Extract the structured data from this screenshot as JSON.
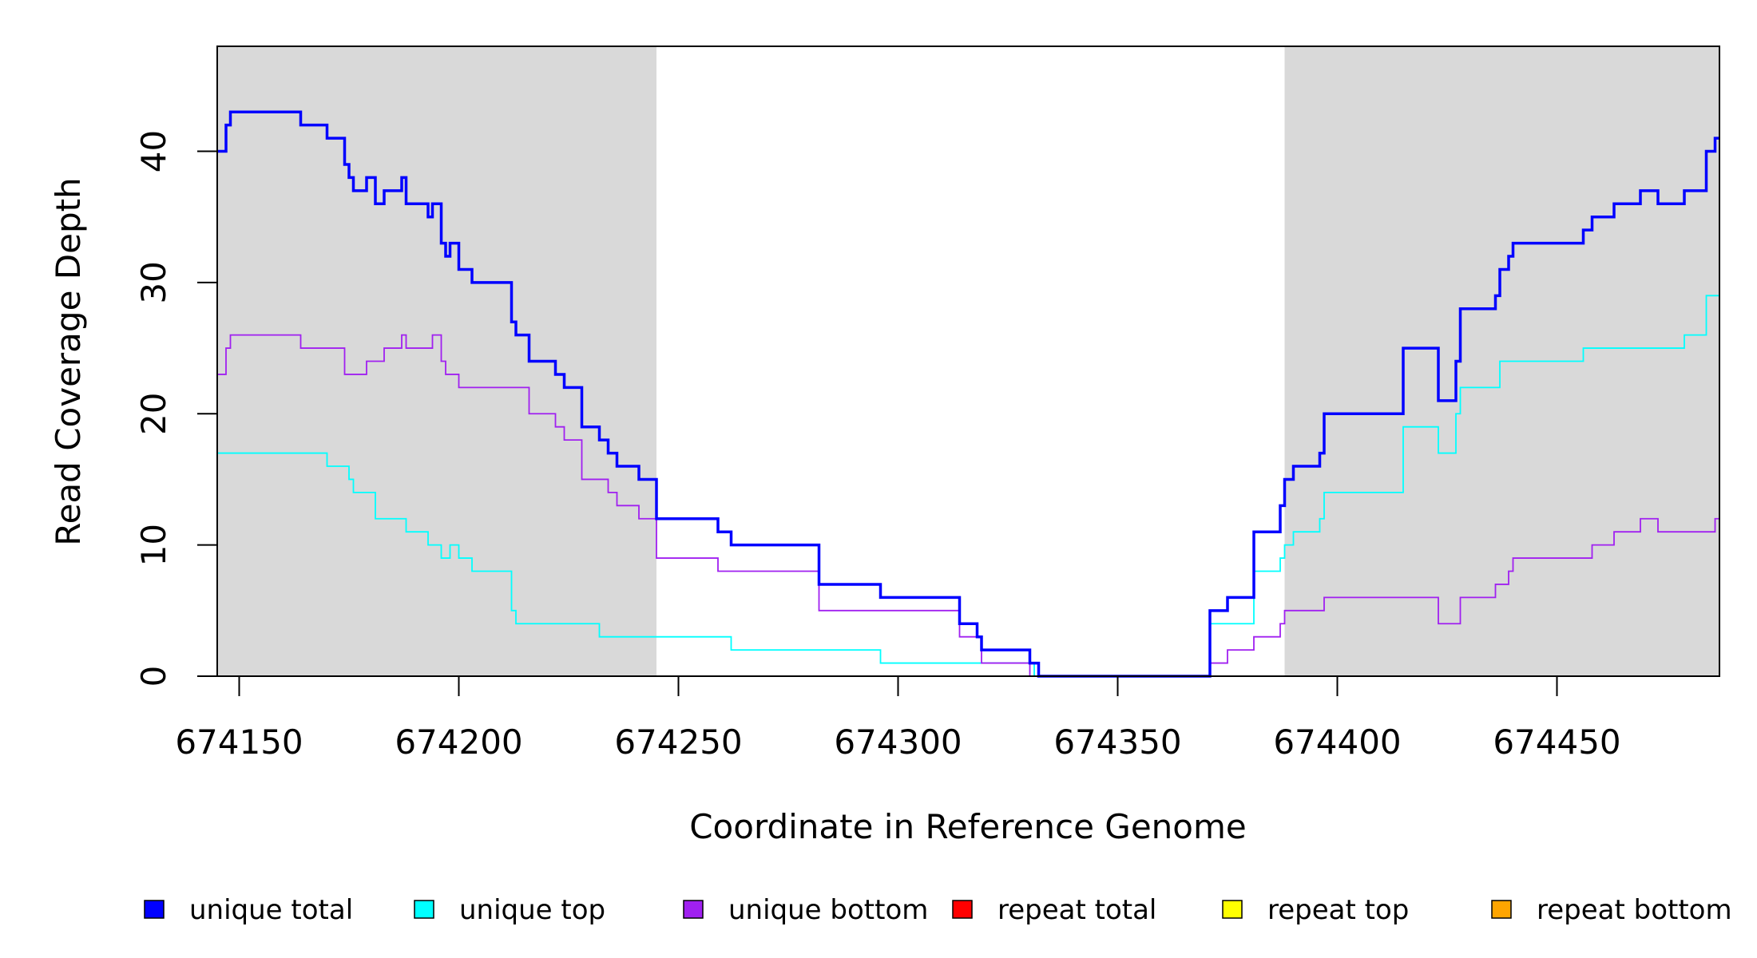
{
  "chart_data": {
    "type": "line",
    "title": "",
    "xlabel": "Coordinate in Reference Genome",
    "ylabel": "Read Coverage Depth",
    "xlim": [
      674145,
      674487
    ],
    "ylim": [
      0,
      48
    ],
    "xticks": [
      674150,
      674200,
      674250,
      674300,
      674350,
      674400,
      674450
    ],
    "xtick_labels": [
      "674150",
      "674200",
      "674250",
      "674300",
      "674350",
      "674400",
      "674450"
    ],
    "yticks": [
      0,
      10,
      20,
      30,
      40
    ],
    "ytick_labels": [
      "0",
      "10",
      "20",
      "30",
      "40"
    ],
    "grid": false,
    "shaded_regions": [
      [
        674145,
        674245
      ],
      [
        674388,
        674487
      ]
    ],
    "shade_color": "#d9d9d9",
    "legend_position": "bottom",
    "step": true,
    "series": [
      {
        "name": "unique total",
        "color": "#0000ff",
        "steps": [
          [
            674145,
            40
          ],
          [
            674147,
            42
          ],
          [
            674148,
            43
          ],
          [
            674164,
            42
          ],
          [
            674170,
            41
          ],
          [
            674174,
            39
          ],
          [
            674175,
            38
          ],
          [
            674176,
            37
          ],
          [
            674179,
            38
          ],
          [
            674181,
            36
          ],
          [
            674183,
            37
          ],
          [
            674187,
            38
          ],
          [
            674188,
            36
          ],
          [
            674193,
            35
          ],
          [
            674194,
            36
          ],
          [
            674196,
            33
          ],
          [
            674197,
            32
          ],
          [
            674198,
            33
          ],
          [
            674200,
            31
          ],
          [
            674203,
            30
          ],
          [
            674212,
            27
          ],
          [
            674213,
            26
          ],
          [
            674216,
            24
          ],
          [
            674222,
            23
          ],
          [
            674224,
            22
          ],
          [
            674228,
            19
          ],
          [
            674232,
            18
          ],
          [
            674234,
            17
          ],
          [
            674236,
            16
          ],
          [
            674241,
            15
          ],
          [
            674245,
            12
          ],
          [
            674259,
            11
          ],
          [
            674262,
            10
          ],
          [
            674282,
            7
          ],
          [
            674296,
            6
          ],
          [
            674314,
            4
          ],
          [
            674318,
            3
          ],
          [
            674319,
            2
          ],
          [
            674330,
            1
          ],
          [
            674332,
            0
          ],
          [
            674371,
            5
          ],
          [
            674375,
            6
          ],
          [
            674381,
            11
          ],
          [
            674387,
            13
          ],
          [
            674388,
            15
          ],
          [
            674390,
            16
          ],
          [
            674396,
            17
          ],
          [
            674397,
            20
          ],
          [
            674415,
            25
          ],
          [
            674423,
            21
          ],
          [
            674427,
            24
          ],
          [
            674428,
            28
          ],
          [
            674436,
            29
          ],
          [
            674437,
            31
          ],
          [
            674439,
            32
          ],
          [
            674440,
            33
          ],
          [
            674456,
            34
          ],
          [
            674458,
            35
          ],
          [
            674463,
            36
          ],
          [
            674469,
            37
          ],
          [
            674473,
            36
          ],
          [
            674479,
            37
          ],
          [
            674484,
            40
          ],
          [
            674486,
            41
          ]
        ]
      },
      {
        "name": "unique top",
        "color": "#00ffff",
        "steps": [
          [
            674145,
            17
          ],
          [
            674170,
            16
          ],
          [
            674175,
            15
          ],
          [
            674176,
            14
          ],
          [
            674181,
            12
          ],
          [
            674188,
            11
          ],
          [
            674193,
            10
          ],
          [
            674196,
            9
          ],
          [
            674198,
            10
          ],
          [
            674200,
            9
          ],
          [
            674203,
            8
          ],
          [
            674212,
            5
          ],
          [
            674213,
            4
          ],
          [
            674232,
            3
          ],
          [
            674262,
            2
          ],
          [
            674296,
            1
          ],
          [
            674331,
            0
          ],
          [
            674371,
            4
          ],
          [
            674381,
            8
          ],
          [
            674387,
            9
          ],
          [
            674388,
            10
          ],
          [
            674390,
            11
          ],
          [
            674396,
            12
          ],
          [
            674397,
            14
          ],
          [
            674415,
            19
          ],
          [
            674423,
            17
          ],
          [
            674427,
            20
          ],
          [
            674428,
            22
          ],
          [
            674437,
            24
          ],
          [
            674456,
            25
          ],
          [
            674479,
            26
          ],
          [
            674484,
            29
          ]
        ]
      },
      {
        "name": "unique bottom",
        "color": "#a020f0",
        "steps": [
          [
            674145,
            23
          ],
          [
            674147,
            25
          ],
          [
            674148,
            26
          ],
          [
            674164,
            25
          ],
          [
            674174,
            23
          ],
          [
            674179,
            24
          ],
          [
            674183,
            25
          ],
          [
            674187,
            26
          ],
          [
            674188,
            25
          ],
          [
            674194,
            26
          ],
          [
            674196,
            24
          ],
          [
            674197,
            23
          ],
          [
            674200,
            22
          ],
          [
            674216,
            20
          ],
          [
            674222,
            19
          ],
          [
            674224,
            18
          ],
          [
            674228,
            15
          ],
          [
            674234,
            14
          ],
          [
            674236,
            13
          ],
          [
            674241,
            12
          ],
          [
            674245,
            9
          ],
          [
            674259,
            8
          ],
          [
            674282,
            5
          ],
          [
            674314,
            3
          ],
          [
            674319,
            1
          ],
          [
            674330,
            0
          ],
          [
            674371,
            1
          ],
          [
            674375,
            2
          ],
          [
            674381,
            3
          ],
          [
            674387,
            4
          ],
          [
            674388,
            5
          ],
          [
            674397,
            6
          ],
          [
            674423,
            4
          ],
          [
            674428,
            6
          ],
          [
            674436,
            7
          ],
          [
            674439,
            8
          ],
          [
            674440,
            9
          ],
          [
            674458,
            10
          ],
          [
            674463,
            11
          ],
          [
            674469,
            12
          ],
          [
            674473,
            11
          ],
          [
            674486,
            12
          ]
        ]
      },
      {
        "name": "repeat total",
        "color": "#ff0000",
        "steps": [
          [
            674145,
            0
          ]
        ]
      },
      {
        "name": "repeat top",
        "color": "#ffff00",
        "steps": [
          [
            674145,
            0
          ]
        ]
      },
      {
        "name": "repeat bottom",
        "color": "#ffa500",
        "steps": [
          [
            674145,
            0
          ]
        ]
      }
    ]
  }
}
